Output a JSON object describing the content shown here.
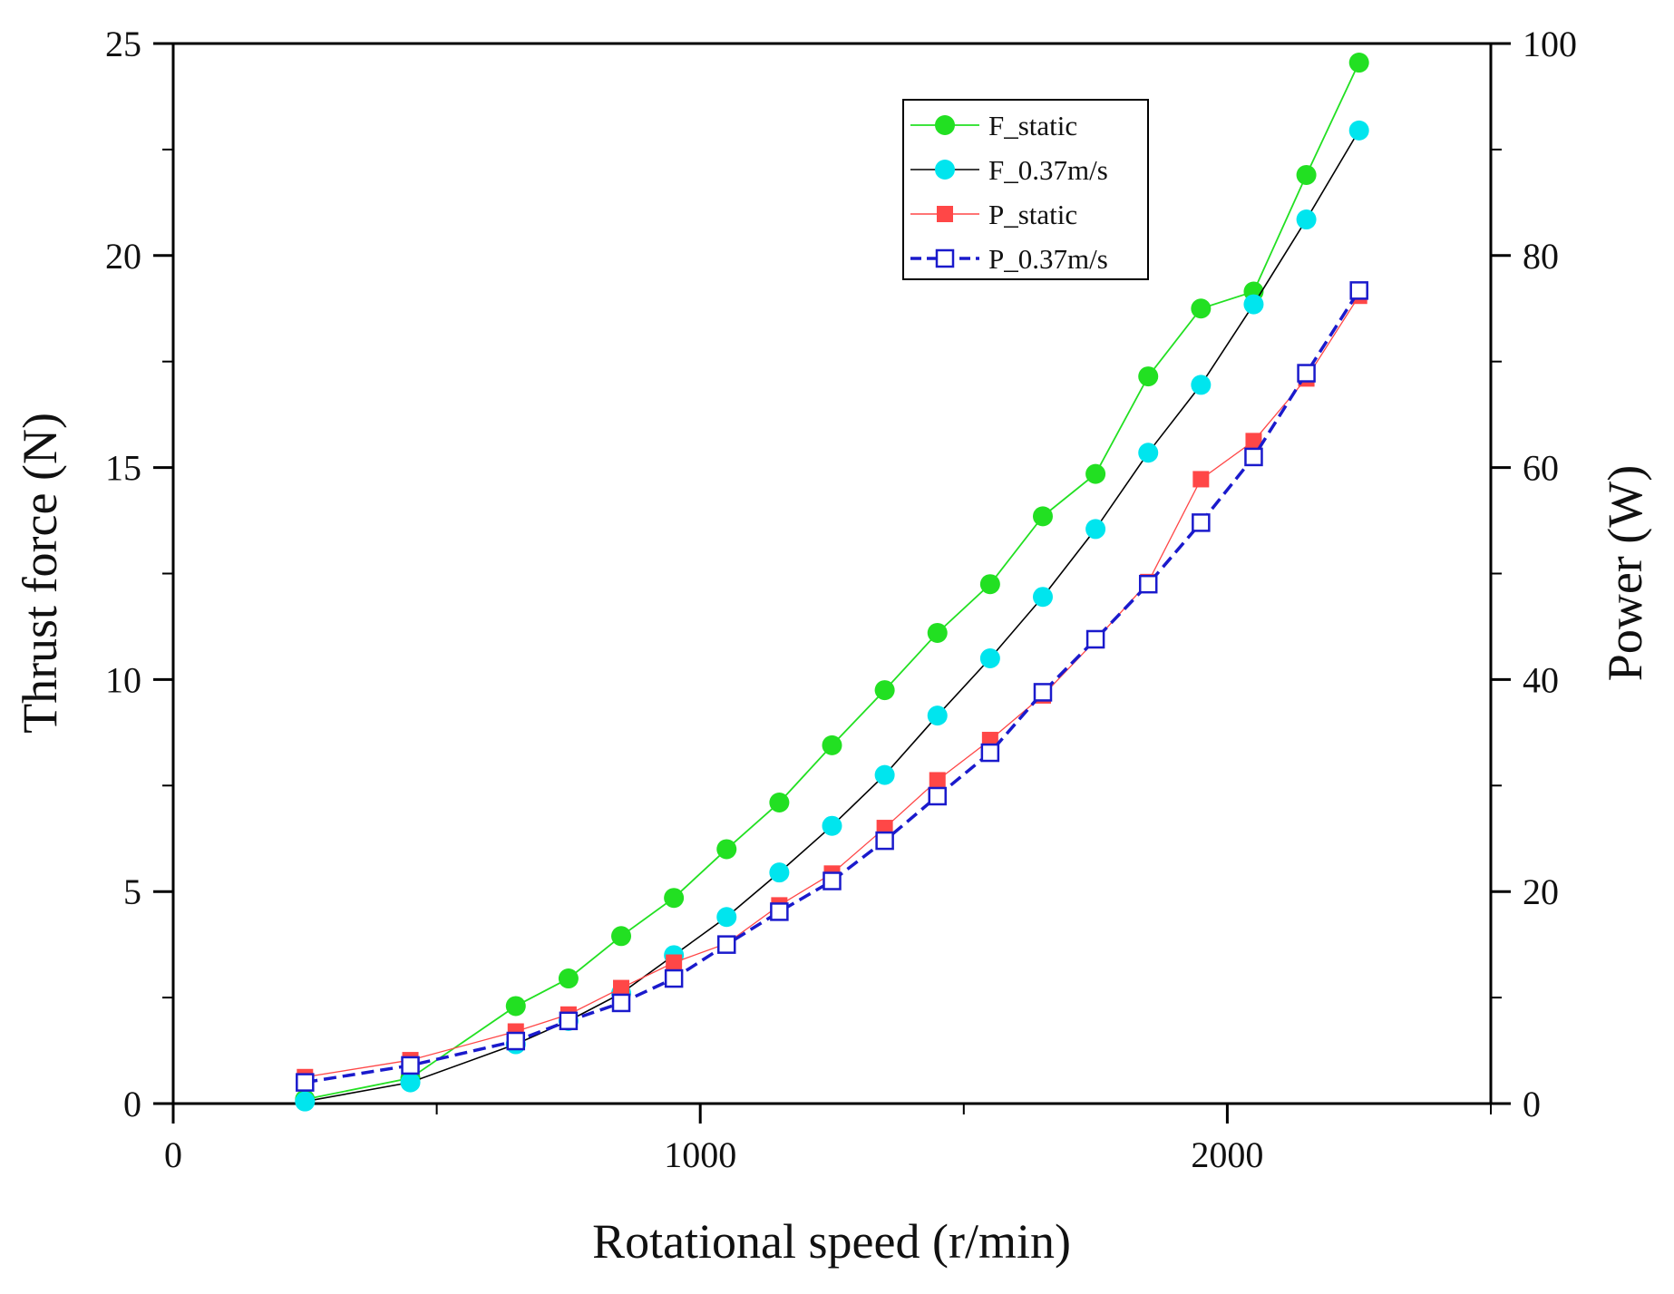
{
  "chart_data": {
    "type": "line",
    "title": "",
    "xlabel": "Rotational speed (r/min)",
    "ylabel_left": "Thrust force (N)",
    "ylabel_right": "Power (W)",
    "xlim": [
      0,
      2500
    ],
    "ylim_left": [
      0,
      25
    ],
    "ylim_right": [
      0,
      100
    ],
    "x_ticks": [
      0,
      1000,
      2000
    ],
    "x_tick_labels": [
      "0",
      "1000",
      "2000"
    ],
    "y_left_ticks": [
      0,
      5,
      10,
      15,
      20,
      25
    ],
    "y_left_tick_labels": [
      "0",
      "5",
      "10",
      "15",
      "20",
      "25"
    ],
    "y_right_ticks": [
      0,
      20,
      40,
      60,
      80,
      100
    ],
    "y_right_tick_labels": [
      "0",
      "20",
      "40",
      "60",
      "80",
      "100"
    ],
    "grid": false,
    "legend_position": "top-right",
    "x": [
      250,
      450,
      650,
      750,
      850,
      950,
      1050,
      1150,
      1250,
      1350,
      1450,
      1550,
      1650,
      1750,
      1850,
      1950,
      2050,
      2150,
      2250
    ],
    "series": [
      {
        "name": "F_static",
        "axis": "left",
        "color": "#22e022",
        "line_color": "#22e022",
        "marker": "circle-filled",
        "values": [
          0.1,
          0.6,
          2.3,
          2.95,
          3.95,
          4.85,
          6.0,
          7.1,
          8.45,
          9.75,
          11.1,
          12.25,
          13.85,
          14.85,
          17.15,
          18.75,
          19.15,
          21.9,
          24.55
        ]
      },
      {
        "name": "F_0.37m/s",
        "axis": "left",
        "color": "#00e5ee",
        "line_color": "#000000",
        "marker": "circle-filled",
        "values": [
          0.05,
          0.5,
          1.4,
          1.95,
          2.6,
          3.5,
          4.4,
          5.45,
          6.55,
          7.75,
          9.15,
          10.5,
          11.95,
          13.55,
          15.35,
          16.95,
          18.85,
          20.85,
          22.95
        ]
      },
      {
        "name": "P_static",
        "axis": "right",
        "color": "#ff4747",
        "line_color": "#ff4747",
        "marker": "square-filled",
        "values": [
          2.5,
          4.1,
          6.8,
          8.4,
          10.9,
          13.3,
          15.1,
          18.7,
          21.7,
          26.0,
          30.5,
          34.3,
          38.5,
          43.7,
          49.2,
          58.9,
          62.5,
          68.4,
          76.2
        ]
      },
      {
        "name": "P_0.37m/s",
        "axis": "right",
        "color": "#1a1acc",
        "line_color": "#1a1acc",
        "marker": "square-open",
        "values": [
          2.0,
          3.6,
          5.9,
          7.8,
          9.5,
          11.8,
          15.0,
          18.1,
          21.0,
          24.8,
          29.0,
          33.1,
          38.8,
          43.8,
          49.0,
          54.8,
          61.0,
          68.9,
          76.7
        ]
      }
    ]
  }
}
